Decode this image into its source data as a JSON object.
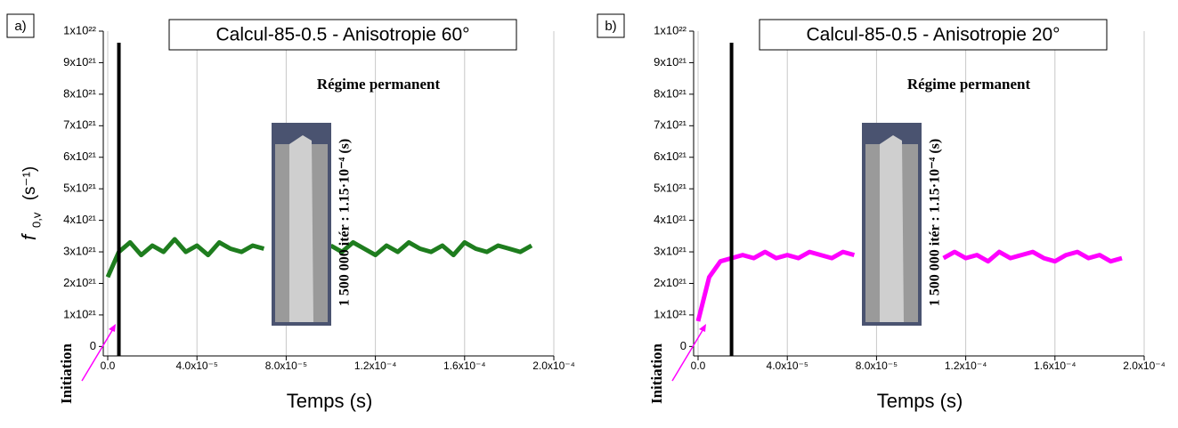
{
  "chart_data": [
    {
      "type": "line",
      "panel_label": "a)",
      "title": "Calcul-85-0.5 - Anisotropie 60°",
      "x_label": "Temps (s)",
      "y_label": "f",
      "y_label_sub": "0,v",
      "y_unit": "(s⁻¹)",
      "annotation_regime": "Régime permanent",
      "annotation_iter": "1 500 000 itér : 1.15·10⁻⁴ (s)",
      "annotation_init": "Initiation",
      "vline_x": 5e-06,
      "x": [
        0,
        5e-06,
        1e-05,
        1.5e-05,
        2e-05,
        2.5e-05,
        3e-05,
        3.5e-05,
        4e-05,
        4.5e-05,
        5e-05,
        5.5e-05,
        6e-05,
        6.5e-05,
        7e-05,
        7.5e-05,
        8e-05,
        8.5e-05,
        9e-05,
        9.5e-05,
        0.0001,
        0.000105,
        0.00011,
        0.000115,
        0.00012,
        0.000125,
        0.00013,
        0.000135,
        0.00014,
        0.000145,
        0.00015,
        0.000155,
        0.00016,
        0.000165,
        0.00017,
        0.000175,
        0.00018,
        0.000185,
        0.00019
      ],
      "series": [
        {
          "color": "#1e7d1e",
          "values": [
            2.2e+21,
            3e+21,
            3.3e+21,
            2.9e+21,
            3.2e+21,
            3e+21,
            3.4e+21,
            3e+21,
            3.2e+21,
            2.9e+21,
            3.3e+21,
            3.1e+21,
            3e+21,
            3.2e+21,
            3.1e+21,
            null,
            null,
            null,
            null,
            null,
            3.2e+21,
            3e+21,
            3.3e+21,
            3.1e+21,
            2.9e+21,
            3.2e+21,
            3e+21,
            3.3e+21,
            3.1e+21,
            3e+21,
            3.2e+21,
            2.9e+21,
            3.3e+21,
            3.1e+21,
            3e+21,
            3.2e+21,
            3.1e+21,
            3e+21,
            3.2e+21
          ]
        }
      ],
      "xlim": [
        -2e-06,
        0.0002
      ],
      "xticks": [
        {
          "value": 0,
          "label": "0.0"
        },
        {
          "value": 4e-05,
          "label": "4.0x10⁻⁵"
        },
        {
          "value": 8e-05,
          "label": "8.0x10⁻⁵"
        },
        {
          "value": 0.00012,
          "label": "1.2x10⁻⁴"
        },
        {
          "value": 0.00016,
          "label": "1.6x10⁻⁴"
        },
        {
          "value": 0.0002,
          "label": "2.0x10⁻⁴"
        }
      ],
      "ylim": [
        -3e+20,
        1e+22
      ],
      "yticks": [
        0,
        {
          "value": 1e+21,
          "label": "1x10²¹"
        },
        {
          "value": 2e+21,
          "label": "2x10²¹"
        },
        {
          "value": 3e+21,
          "label": "3x10²¹"
        },
        {
          "value": 4e+21,
          "label": "4x10²¹"
        },
        {
          "value": 5e+21,
          "label": "5x10²¹"
        },
        {
          "value": 6e+21,
          "label": "6x10²¹"
        },
        {
          "value": 7e+21,
          "label": "7x10²¹"
        },
        {
          "value": 8e+21,
          "label": "8x10²¹"
        },
        {
          "value": 9e+21,
          "label": "9x10²¹"
        },
        {
          "value": 1e+22,
          "label": "1x10²²"
        }
      ],
      "grid": "x"
    },
    {
      "type": "line",
      "panel_label": "b)",
      "title": "Calcul-85-0.5 - Anisotropie 20°",
      "x_label": "Temps (s)",
      "annotation_regime": "Régime permanent",
      "annotation_iter": "1 500 000 itér : 1.15·10⁻⁴ (s)",
      "annotation_init": "Initiation",
      "vline_x": 1.5e-05,
      "x": [
        0,
        5e-06,
        1e-05,
        1.5e-05,
        2e-05,
        2.5e-05,
        3e-05,
        3.5e-05,
        4e-05,
        4.5e-05,
        5e-05,
        5.5e-05,
        6e-05,
        6.5e-05,
        7e-05,
        7.5e-05,
        8e-05,
        8.5e-05,
        9e-05,
        9.5e-05,
        0.0001,
        0.000105,
        0.00011,
        0.000115,
        0.00012,
        0.000125,
        0.00013,
        0.000135,
        0.00014,
        0.000145,
        0.00015,
        0.000155,
        0.00016,
        0.000165,
        0.00017,
        0.000175,
        0.00018,
        0.000185,
        0.00019
      ],
      "series": [
        {
          "color": "#ff00ff",
          "values": [
            8e+20,
            2.2e+21,
            2.7e+21,
            2.8e+21,
            2.9e+21,
            2.8e+21,
            3e+21,
            2.8e+21,
            2.9e+21,
            2.8e+21,
            3e+21,
            2.9e+21,
            2.8e+21,
            3e+21,
            2.9e+21,
            null,
            null,
            null,
            null,
            null,
            null,
            null,
            2.8e+21,
            3e+21,
            2.8e+21,
            2.9e+21,
            2.7e+21,
            3e+21,
            2.8e+21,
            2.9e+21,
            3e+21,
            2.8e+21,
            2.7e+21,
            2.9e+21,
            3e+21,
            2.8e+21,
            2.9e+21,
            2.7e+21,
            2.8e+21
          ]
        }
      ],
      "xlim": [
        -2e-06,
        0.0002
      ],
      "xticks": [
        {
          "value": 0,
          "label": "0.0"
        },
        {
          "value": 4e-05,
          "label": "4.0x10⁻⁵"
        },
        {
          "value": 8e-05,
          "label": "8.0x10⁻⁵"
        },
        {
          "value": 0.00012,
          "label": "1.2x10⁻⁴"
        },
        {
          "value": 0.00016,
          "label": "1.6x10⁻⁴"
        },
        {
          "value": 0.0002,
          "label": "2.0x10⁻⁴"
        }
      ],
      "ylim": [
        -3e+20,
        1e+22
      ],
      "yticks": [
        0,
        {
          "value": 1e+21,
          "label": "1x10²¹"
        },
        {
          "value": 2e+21,
          "label": "2x10²¹"
        },
        {
          "value": 3e+21,
          "label": "3x10²¹"
        },
        {
          "value": 4e+21,
          "label": "4x10²¹"
        },
        {
          "value": 5e+21,
          "label": "5x10²¹"
        },
        {
          "value": 6e+21,
          "label": "6x10²¹"
        },
        {
          "value": 7e+21,
          "label": "7x10²¹"
        },
        {
          "value": 8e+21,
          "label": "8x10²¹"
        },
        {
          "value": 9e+21,
          "label": "9x10²¹"
        },
        {
          "value": 1e+22,
          "label": "1x10²²"
        }
      ],
      "grid": "x"
    }
  ]
}
